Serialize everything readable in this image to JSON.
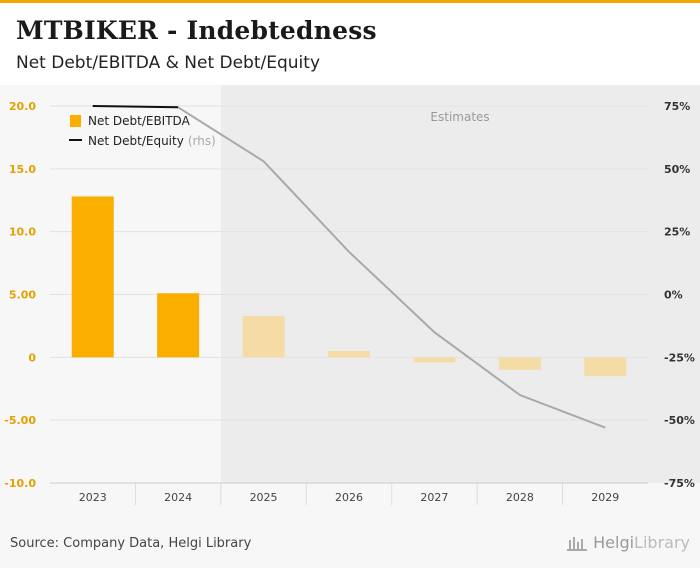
{
  "header": {
    "title": "MTBIKER - Indebtedness",
    "subtitle": "Net Debt/EBITDA & Net Debt/Equity"
  },
  "footer": {
    "source": "Source: Company Data, Helgi Library",
    "brand_main": "Helgi",
    "brand_suffix": "Library"
  },
  "colors": {
    "bar_actual": "#f9ae00",
    "bar_estimate": "#f5dba6",
    "line_actual": "#111111",
    "line_estimate": "#a9a9a9",
    "estimates_bg": "#ececec",
    "plot_bg": "#f7f7f7",
    "left_tick": "#e6a100"
  },
  "chart_data": {
    "type": "bar",
    "title": "MTBIKER - Indebtedness",
    "subtitle": "Net Debt/EBITDA & Net Debt/Equity",
    "categories": [
      "2023",
      "2024",
      "2025",
      "2026",
      "2027",
      "2028",
      "2029"
    ],
    "estimates_label": "Estimates",
    "estimates_from_index": 2,
    "left_axis": {
      "ylim": [
        -10,
        20
      ],
      "ticks": [
        20,
        15,
        10,
        5,
        0,
        -5,
        -10
      ],
      "tick_labels": [
        "20.0",
        "15.0",
        "10.0",
        "5.00",
        "0",
        "-5.00",
        "-10.0"
      ]
    },
    "right_axis": {
      "ylim": [
        -75,
        75
      ],
      "ticks": [
        75,
        50,
        25,
        0,
        -25,
        -50,
        -75
      ],
      "tick_labels": [
        "75%",
        "50%",
        "25%",
        "0%",
        "-25%",
        "-50%",
        "-75%"
      ]
    },
    "series": [
      {
        "name": "Net Debt/EBITDA",
        "axis": "left",
        "type": "bar",
        "values": [
          12.8,
          5.1,
          3.3,
          0.5,
          -0.4,
          -1.0,
          -1.5
        ]
      },
      {
        "name": "Net Debt/Equity",
        "axis": "right",
        "type": "line",
        "values": [
          75,
          74.5,
          53,
          17,
          -15,
          -40,
          -53
        ]
      }
    ],
    "legend": {
      "position": "top-left",
      "items": [
        {
          "label": "Net Debt/EBITDA",
          "suffix": ""
        },
        {
          "label": "Net Debt/Equity",
          "suffix": "(rhs)"
        }
      ]
    }
  }
}
